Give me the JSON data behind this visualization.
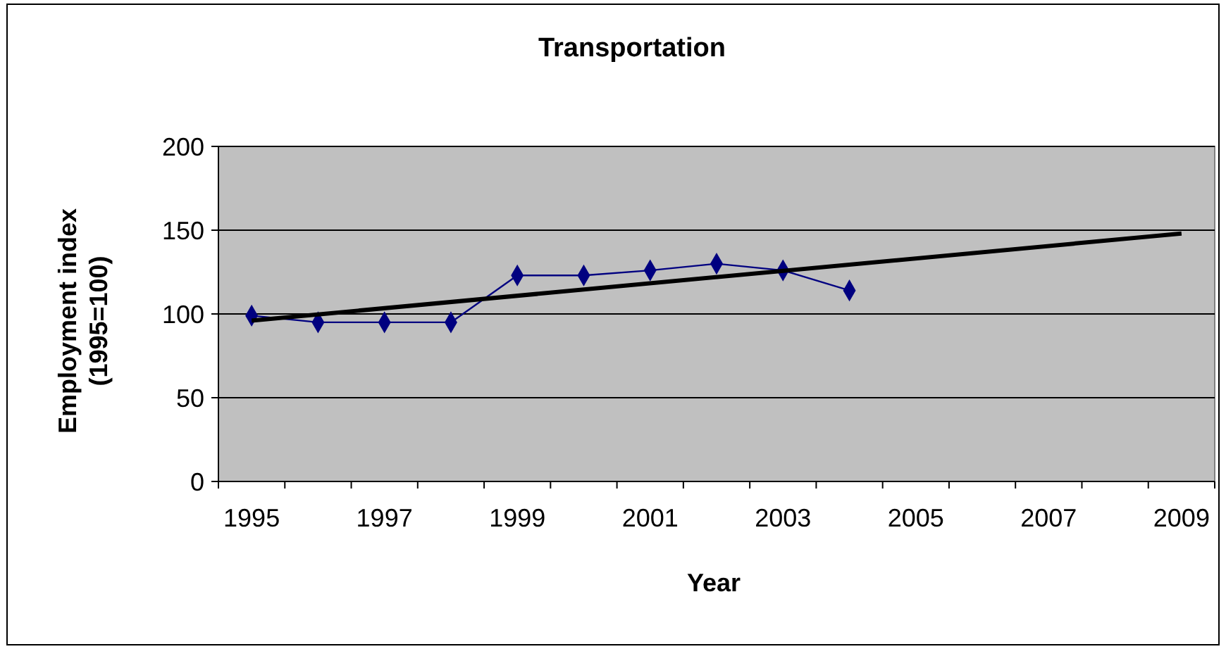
{
  "chart_data": {
    "type": "line",
    "title": "Transportation",
    "xlabel": "Year",
    "ylabel": "Employment index\n(1995=100)",
    "categories": [
      "1995",
      null,
      "1997",
      null,
      "1999",
      null,
      "2001",
      null,
      "2003",
      null,
      "2005",
      null,
      "2007",
      null,
      "2009"
    ],
    "series": [
      {
        "color": "#000080",
        "marker": "diamond",
        "values": [
          99,
          95,
          95,
          95,
          123,
          123,
          126,
          130,
          126,
          114,
          null,
          null,
          null,
          null,
          null
        ]
      },
      {
        "color": "#000000",
        "marker": "none",
        "values": [
          96,
          null,
          null,
          null,
          null,
          null,
          null,
          null,
          null,
          null,
          null,
          null,
          null,
          null,
          148
        ]
      }
    ],
    "ylim": [
      0,
      200
    ],
    "yticks": [
      0,
      50,
      100,
      150,
      200
    ],
    "grid": "y"
  }
}
